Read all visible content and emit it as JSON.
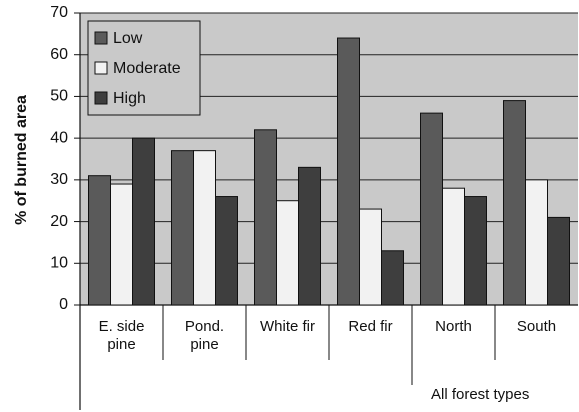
{
  "chart_data": {
    "type": "bar",
    "y_label": "% of burned area",
    "categories": [
      "E. side pine",
      "Pond. pine",
      "White fir",
      "Red fir",
      "North",
      "South"
    ],
    "annotations": [
      "All forest types"
    ],
    "series": [
      {
        "name": "Low",
        "color": "#5a5a5a",
        "values": [
          31,
          37,
          42,
          64,
          46,
          49
        ]
      },
      {
        "name": "Moderate",
        "color": "#f2f2f2",
        "values": [
          29,
          37,
          25,
          23,
          28,
          30
        ]
      },
      {
        "name": "High",
        "color": "#3e3e3e",
        "values": [
          40,
          26,
          33,
          13,
          26,
          21
        ]
      }
    ],
    "ylim": [
      0,
      70
    ],
    "yticks": [
      0,
      10,
      20,
      30,
      40,
      50,
      60,
      70
    ],
    "grid": true,
    "legend": "top-left"
  }
}
